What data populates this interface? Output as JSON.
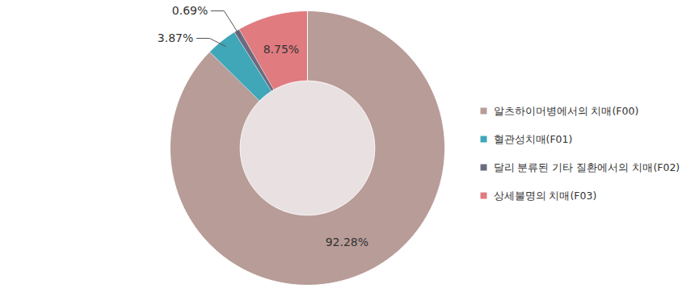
{
  "chart_data": {
    "type": "pie",
    "categories": [
      "알츠하이머병에서의 치매(F00)",
      "혈관성치매(F01)",
      "달리 분류된 기타 질환에서의 치매(F02)",
      "상세불명의 치매(F03)"
    ],
    "values": [
      92.28,
      3.87,
      0.69,
      8.75
    ],
    "value_labels": [
      "92.28%",
      "3.87%",
      "0.69%",
      "8.75%"
    ],
    "colors": [
      "#b89c98",
      "#3fa7b8",
      "#6b6b80",
      "#e07b80"
    ],
    "data_labels": true,
    "legend": "right"
  }
}
